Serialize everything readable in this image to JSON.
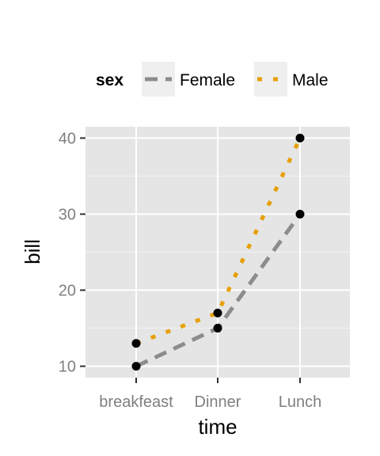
{
  "chart_data": {
    "type": "line",
    "categories": [
      "breakfeast",
      "Dinner",
      "Lunch"
    ],
    "series": [
      {
        "name": "Female",
        "values": [
          10,
          15,
          30
        ],
        "color": "#8c8c8c",
        "dash": "dashed"
      },
      {
        "name": "Male",
        "values": [
          13,
          17,
          40
        ],
        "color": "#e69f00",
        "dash": "dotted"
      }
    ],
    "xlabel": "time",
    "ylabel": "bill",
    "ylim": [
      8.5,
      41.5
    ],
    "yticks": [
      10,
      20,
      30,
      40
    ],
    "y_minor_ticks": [
      15,
      25,
      35
    ],
    "grid": true,
    "legend": {
      "title": "sex",
      "position": "top"
    },
    "colors": {
      "panel": "#e5e5e5",
      "grid": "#ffffff",
      "point": "#000000"
    }
  }
}
